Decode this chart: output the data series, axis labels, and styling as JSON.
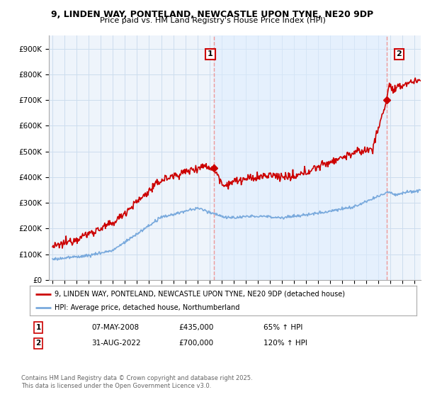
{
  "title_line1": "9, LINDEN WAY, PONTELAND, NEWCASTLE UPON TYNE, NE20 9DP",
  "title_line2": "Price paid vs. HM Land Registry's House Price Index (HPI)",
  "legend_label_red": "9, LINDEN WAY, PONTELAND, NEWCASTLE UPON TYNE, NE20 9DP (detached house)",
  "legend_label_blue": "HPI: Average price, detached house, Northumberland",
  "annotation1_date": "07-MAY-2008",
  "annotation1_price": "£435,000",
  "annotation1_hpi": "65% ↑ HPI",
  "annotation2_date": "31-AUG-2022",
  "annotation2_price": "£700,000",
  "annotation2_hpi": "120% ↑ HPI",
  "footer": "Contains HM Land Registry data © Crown copyright and database right 2025.\nThis data is licensed under the Open Government Licence v3.0.",
  "red_color": "#cc0000",
  "blue_color": "#7aaadd",
  "dashed_color": "#ee9999",
  "grid_color": "#ccddee",
  "bg_color": "#ffffff",
  "chart_bg": "#eef4fb",
  "shade_color": "#ddeeff",
  "ylim_max": 950000,
  "sale1_year": 2008.35,
  "sale1_price": 435000,
  "sale2_year": 2022.67,
  "sale2_price": 700000
}
